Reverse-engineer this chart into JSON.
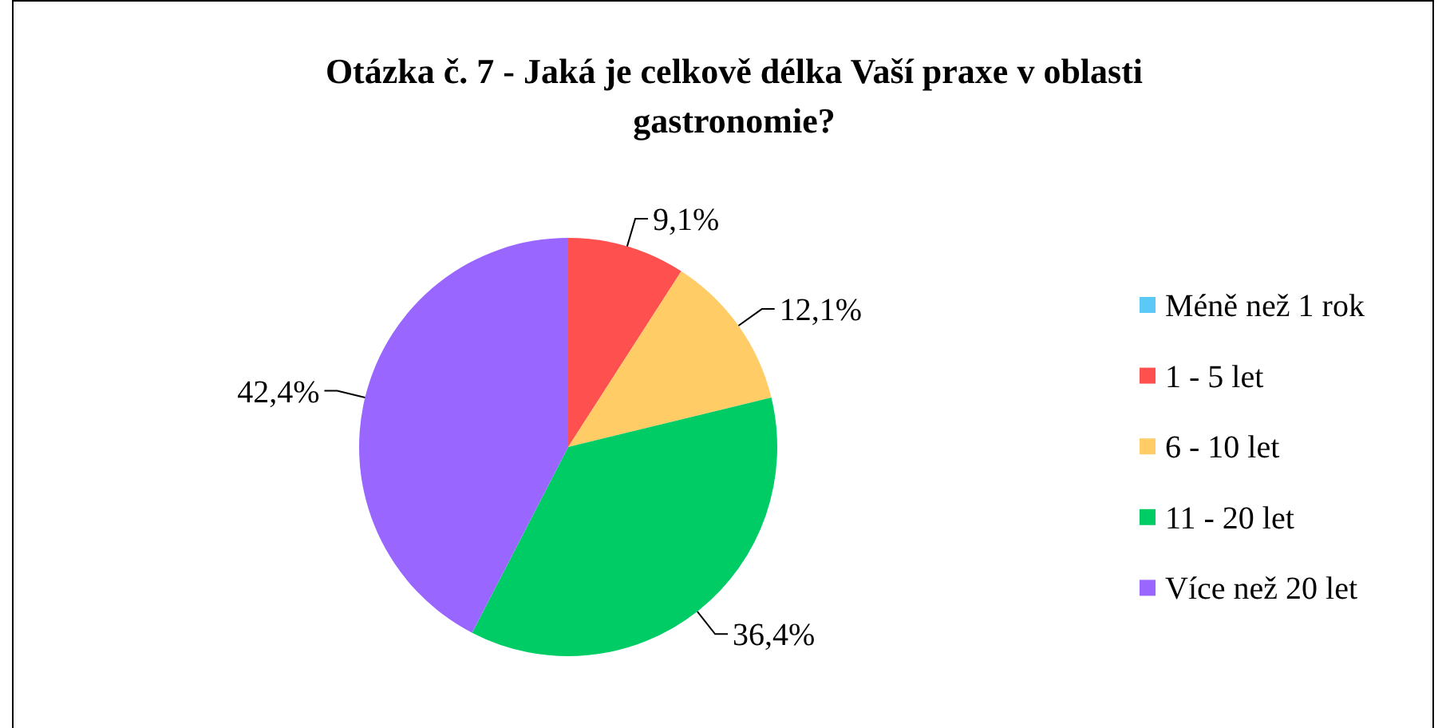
{
  "chart_data": {
    "type": "pie",
    "title": "Otázka č. 7 - Jaká je celkově délka Vaší praxe v oblasti gastronomie?",
    "categories": [
      "Méně než 1 rok",
      "1 - 5 let",
      "6 - 10 let",
      "11 - 20 let",
      "Více než 20 let"
    ],
    "values": [
      0,
      9.1,
      12.1,
      36.4,
      42.4
    ],
    "colors": [
      "#5bc8f5",
      "#ff5050",
      "#ffcc66",
      "#00cc66",
      "#9966ff"
    ],
    "value_labels": [
      null,
      "9,1%",
      "12,1%",
      "36,4%",
      "42,4%"
    ],
    "legend": "right"
  }
}
